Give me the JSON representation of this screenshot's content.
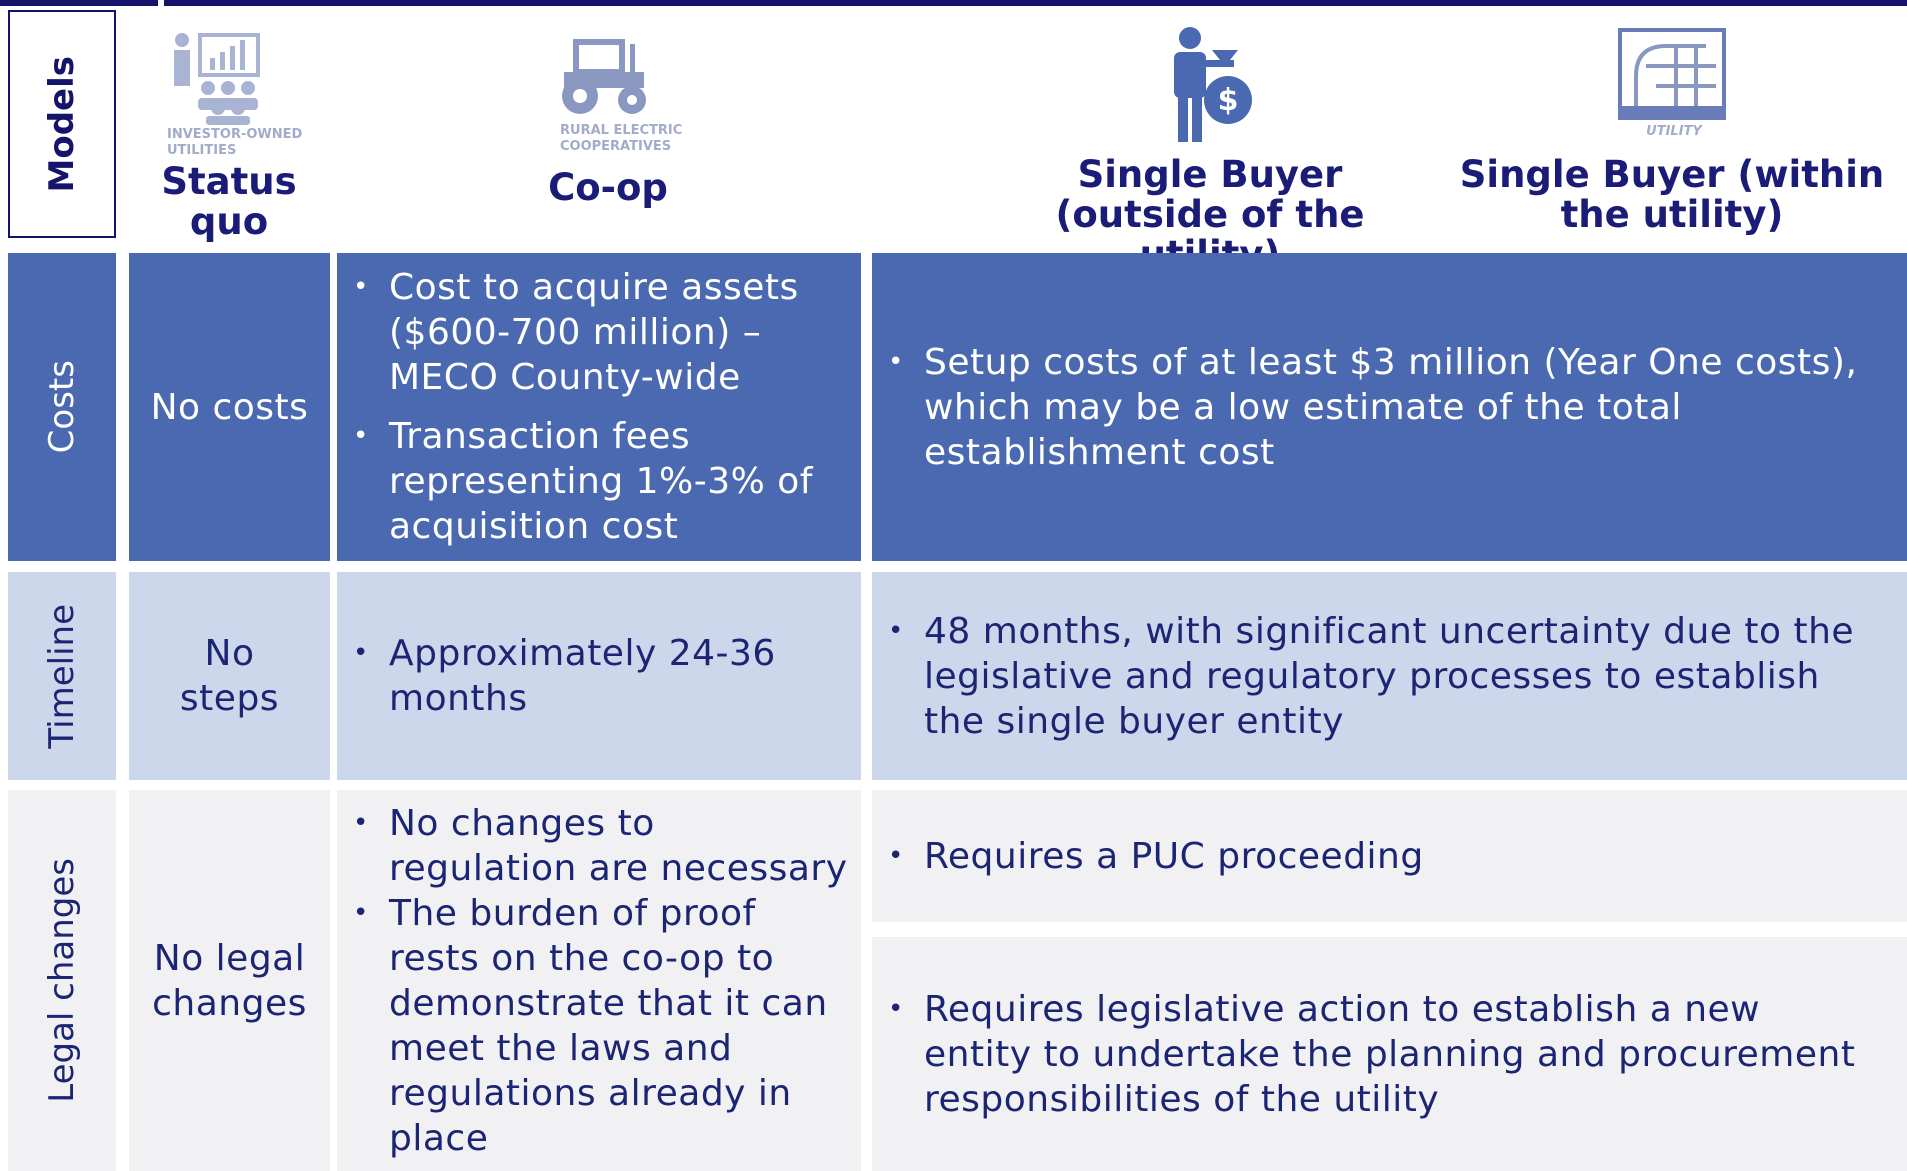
{
  "header": {
    "row_label": "Models",
    "columns": [
      {
        "icon_caption": "INVESTOR-OWNED UTILITIES",
        "title": "Status quo"
      },
      {
        "icon_caption": "RURAL ELECTRIC COOPERATIVES",
        "title": "Co-op"
      },
      {
        "title": "Single Buyer (outside of the utility)"
      },
      {
        "icon_caption": "UTILITY",
        "title": "Single Buyer (within the utility)"
      }
    ]
  },
  "rows": [
    {
      "label": "Costs",
      "status_quo": "No costs",
      "co_op": [
        "Cost to acquire assets ($600-700 million) – MECO County-wide",
        "Transaction fees representing 1%-3% of acquisition cost"
      ],
      "single_buyer": [
        [
          "Setup costs of at least $3 million (Year One costs), which may be a low estimate of the total establishment cost"
        ]
      ]
    },
    {
      "label": "Timeline",
      "status_quo": "No steps",
      "co_op": [
        "Approximately 24-36 months"
      ],
      "single_buyer": [
        [
          "48 months, with significant uncertainty due to the legislative and regulatory processes to establish the single buyer entity"
        ]
      ]
    },
    {
      "label": "Legal changes",
      "status_quo": "No legal changes",
      "co_op": [
        "No changes to regulation are necessary",
        "The burden of proof rests on the co-op to demonstrate that it can meet the laws and regulations already in place"
      ],
      "single_buyer": [
        [
          "Requires a PUC proceeding"
        ],
        [
          "Requires legislative action to establish a new entity to undertake the planning and procurement responsibilities of the utility"
        ]
      ]
    }
  ]
}
